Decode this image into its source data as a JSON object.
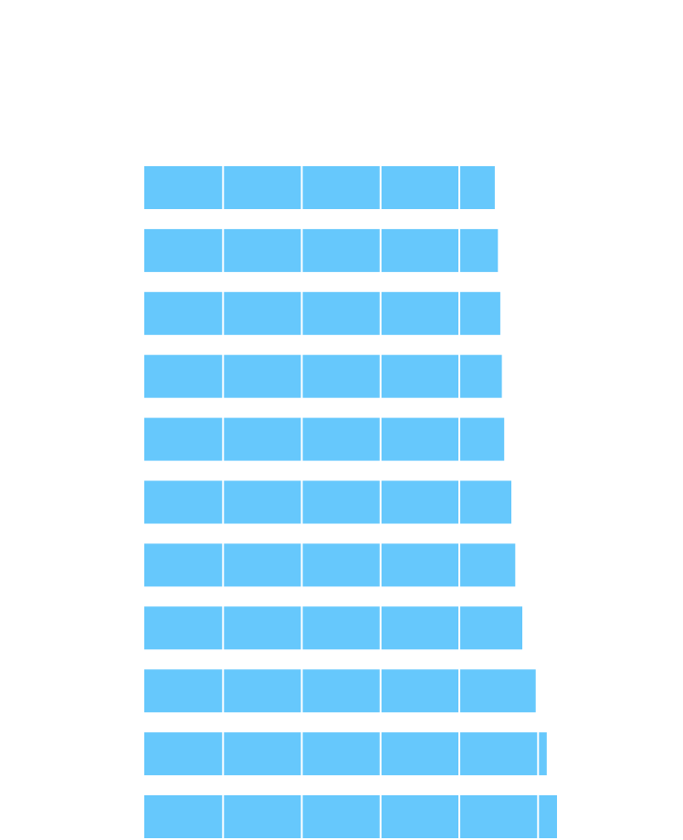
{
  "chart_data": {
    "type": "bar",
    "orientation": "horizontal",
    "values": [
      4.45,
      4.49,
      4.52,
      4.54,
      4.57,
      4.66,
      4.71,
      4.8,
      4.97,
      5.11,
      5.24
    ],
    "xlim": [
      0,
      5.24
    ],
    "grid": true,
    "colors": {
      "bar": "#66c8fc",
      "gridline": "#ffffff"
    }
  }
}
